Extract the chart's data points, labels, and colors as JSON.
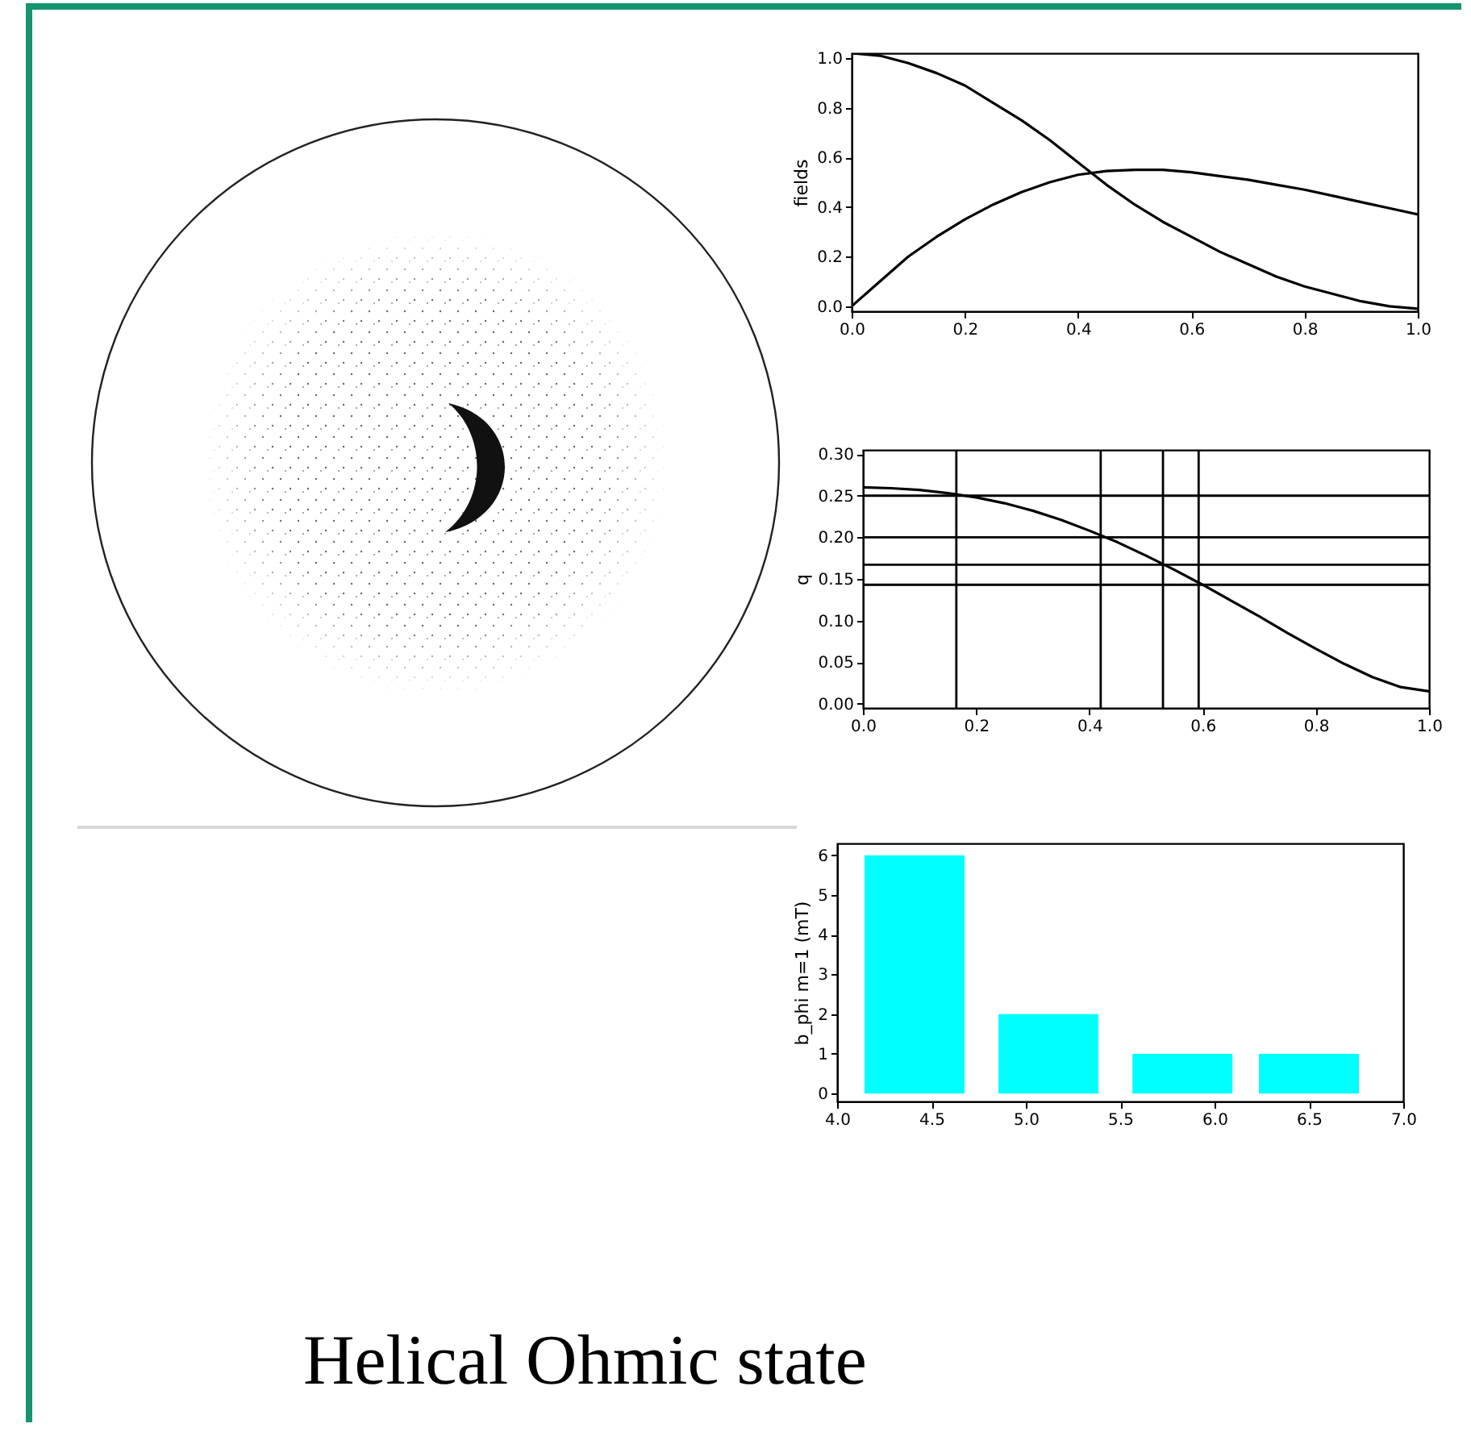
{
  "chart_data": [
    {
      "type": "line",
      "ylabel": "fields",
      "x": [
        0,
        0.05,
        0.1,
        0.15,
        0.2,
        0.25,
        0.3,
        0.35,
        0.4,
        0.45,
        0.5,
        0.55,
        0.6,
        0.65,
        0.7,
        0.75,
        0.8,
        0.85,
        0.9,
        0.95,
        1.0
      ],
      "series": [
        {
          "color": "#000000",
          "values": [
            1.02,
            1.01,
            0.98,
            0.94,
            0.89,
            0.82,
            0.75,
            0.67,
            0.58,
            0.49,
            0.41,
            0.34,
            0.28,
            0.22,
            0.17,
            0.12,
            0.08,
            0.05,
            0.02,
            0.0,
            -0.01
          ]
        },
        {
          "color": "#000000",
          "values": [
            0.0,
            0.1,
            0.2,
            0.28,
            0.35,
            0.41,
            0.46,
            0.5,
            0.53,
            0.545,
            0.55,
            0.55,
            0.54,
            0.525,
            0.51,
            0.49,
            0.47,
            0.445,
            0.42,
            0.395,
            0.37
          ]
        }
      ],
      "xlim": [
        0,
        1
      ],
      "ylim": [
        -0.02,
        1.02
      ],
      "xticks": [
        {
          "value": 0,
          "label": "0.0"
        },
        {
          "value": 0.2,
          "label": "0.2"
        },
        {
          "value": 0.4,
          "label": "0.4"
        },
        {
          "value": 0.6,
          "label": "0.6"
        },
        {
          "value": 0.8,
          "label": "0.8"
        },
        {
          "value": 1,
          "label": "1.0"
        }
      ],
      "yticks": [
        {
          "value": 0,
          "label": "0.0"
        },
        {
          "value": 0.2,
          "label": "0.2"
        },
        {
          "value": 0.4,
          "label": "0.4"
        },
        {
          "value": 0.6,
          "label": "0.6"
        },
        {
          "value": 0.8,
          "label": "0.8"
        },
        {
          "value": 1,
          "label": "1.0"
        }
      ],
      "annotations": [
        "Helical Ohmic state"
      ]
    },
    {
      "type": "line",
      "ylabel": "q",
      "x": [
        0,
        0.05,
        0.1,
        0.15,
        0.2,
        0.25,
        0.3,
        0.35,
        0.4,
        0.45,
        0.5,
        0.55,
        0.6,
        0.65,
        0.7,
        0.75,
        0.8,
        0.85,
        0.9,
        0.95,
        1.0
      ],
      "series": [
        {
          "color": "#000000",
          "values": [
            0.26,
            0.259,
            0.257,
            0.253,
            0.248,
            0.241,
            0.232,
            0.221,
            0.208,
            0.194,
            0.178,
            0.161,
            0.143,
            0.124,
            0.105,
            0.085,
            0.066,
            0.048,
            0.032,
            0.02,
            0.015
          ]
        }
      ],
      "xlim": [
        0,
        1
      ],
      "ylim": [
        -0.005,
        0.305
      ],
      "xticks": [
        {
          "value": 0,
          "label": "0.0"
        },
        {
          "value": 0.2,
          "label": "0.2"
        },
        {
          "value": 0.4,
          "label": "0.4"
        },
        {
          "value": 0.6,
          "label": "0.6"
        },
        {
          "value": 0.8,
          "label": "0.8"
        },
        {
          "value": 1,
          "label": "1.0"
        }
      ],
      "yticks": [
        {
          "value": 0,
          "label": "0.00"
        },
        {
          "value": 0.05,
          "label": "0.05"
        },
        {
          "value": 0.1,
          "label": "0.10"
        },
        {
          "value": 0.15,
          "label": "0.15"
        },
        {
          "value": 0.2,
          "label": "0.20"
        },
        {
          "value": 0.25,
          "label": "0.25"
        },
        {
          "value": 0.3,
          "label": "0.30"
        }
      ],
      "ref_lines": [
        {
          "axis": "y",
          "value": 0.25,
          "color": "#000000"
        },
        {
          "axis": "y",
          "value": 0.2,
          "color": "#000000"
        },
        {
          "axis": "y",
          "value": 0.167,
          "color": "#000000"
        },
        {
          "axis": "y",
          "value": 0.143,
          "color": "#000000"
        },
        {
          "axis": "x",
          "value": 0.165,
          "color": "#000000"
        },
        {
          "axis": "x",
          "value": 0.42,
          "color": "#000000"
        },
        {
          "axis": "x",
          "value": 0.53,
          "color": "#000000"
        },
        {
          "axis": "x",
          "value": 0.593,
          "color": "#000000"
        }
      ]
    },
    {
      "type": "bar",
      "ylabel": "b_phi m=1 (mT)",
      "x": [
        4.41,
        5.12,
        5.83,
        6.5
      ],
      "values": [
        6,
        2,
        1,
        1
      ],
      "color": "#00ffff",
      "xlim": [
        4,
        7
      ],
      "ylim": [
        -0.2,
        6.3
      ],
      "xticks": [
        {
          "value": 4,
          "label": "4.0"
        },
        {
          "value": 4.5,
          "label": "4.5"
        },
        {
          "value": 5,
          "label": "5.0"
        },
        {
          "value": 5.5,
          "label": "5.5"
        },
        {
          "value": 6,
          "label": "6.0"
        },
        {
          "value": 6.5,
          "label": "6.5"
        },
        {
          "value": 7,
          "label": "7.0"
        }
      ],
      "yticks": [
        0,
        1,
        2,
        3,
        4,
        5,
        6
      ]
    }
  ]
}
